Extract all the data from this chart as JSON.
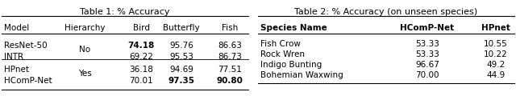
{
  "table1_title": "Table 1: % Accuracy",
  "table1_headers": [
    "Model",
    "Hierarchy",
    "Bird",
    "Butterfly",
    "Fish"
  ],
  "table1_rows": [
    [
      "ResNet-50",
      "",
      "74.18",
      "95.76",
      "86.63"
    ],
    [
      "INTR",
      "No",
      "69.22",
      "95.53",
      "86.73"
    ],
    [
      "HPnet",
      "",
      "36.18",
      "94.69",
      "77.51"
    ],
    [
      "HComP-Net",
      "Yes",
      "70.01",
      "97.35",
      "90.80"
    ]
  ],
  "table1_bold": [
    [
      false,
      false,
      true,
      false,
      false
    ],
    [
      false,
      false,
      false,
      false,
      false
    ],
    [
      false,
      false,
      false,
      false,
      false
    ],
    [
      false,
      false,
      false,
      true,
      true
    ]
  ],
  "table1_hierarchy_rows": [
    [
      0,
      1,
      "No"
    ],
    [
      2,
      3,
      "Yes"
    ]
  ],
  "table2_title": "Table 2: % Accuracy (on unseen species)",
  "table2_headers": [
    "Species Name",
    "HComP-Net",
    "HPnet"
  ],
  "table2_rows": [
    [
      "Fish Crow",
      "53.33",
      "10.55"
    ],
    [
      "Rock Wren",
      "53.33",
      "10.22"
    ],
    [
      "Indigo Bunting",
      "96.67",
      "49.2"
    ],
    [
      "Bohemian Waxwing",
      "70.00",
      "44.9"
    ]
  ],
  "bg_color": "#ffffff",
  "text_color": "#000000",
  "fontsize": 7.5,
  "title_fontsize": 8.0,
  "header_fontsize": 7.5
}
